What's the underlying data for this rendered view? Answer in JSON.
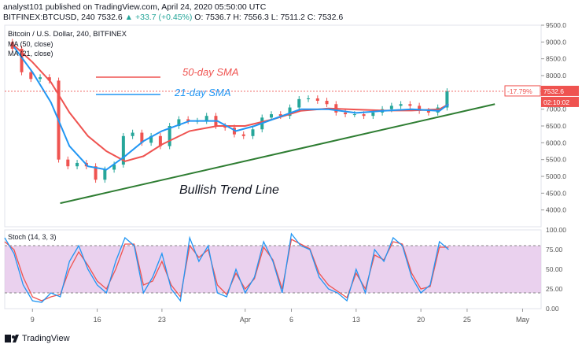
{
  "header": {
    "line1": "analyst101 published on TradingView.com, April 24, 2020 05:50:00 UTC",
    "symbol": "BITFINEX:BTCUSD, 240",
    "price": "7532.6",
    "change": "▲ +33.7 (+0.45%)",
    "ohlc": "O: 7536.7  H: 7556.3  L: 7511.2  C: 7532.6"
  },
  "chart_data": [
    {
      "type": "candlestick",
      "title": "Bitcoin / U.S. Dollar, 240, BITFINEX",
      "legend": [
        {
          "label": "MA (50, close)",
          "color": "#ef5350"
        },
        {
          "label": "MA (21, close)",
          "color": "#2196f3"
        }
      ],
      "annotations": [
        "50-day SMA",
        "21-day SMA",
        "Bullish Trend Line"
      ],
      "ylim": [
        3500,
        9500
      ],
      "yticks": [
        "9500.0",
        "9000.0",
        "8500.0",
        "8000.0",
        "7500.0",
        "7000.0",
        "6500.0",
        "6000.0",
        "5500.0",
        "5000.0",
        "4500.0",
        "4000.0"
      ],
      "xticks": [
        "9",
        "16",
        "23",
        "Apr",
        "6",
        "13",
        "20",
        "25",
        "May"
      ],
      "xtick_days": [
        9,
        16,
        23,
        32,
        37,
        44,
        51,
        56,
        62
      ],
      "x_range_days": [
        6,
        64
      ],
      "price_label": "7532.6",
      "price_pct": "-17.79%",
      "countdown": "02:10:02",
      "price_close": [
        [
          6,
          9000
        ],
        [
          7,
          8800
        ],
        [
          8,
          8100
        ],
        [
          9,
          7900
        ],
        [
          10,
          7950
        ],
        [
          11,
          7850
        ],
        [
          12,
          5500
        ],
        [
          13,
          5300
        ],
        [
          14,
          5400
        ],
        [
          15,
          5300
        ],
        [
          16,
          4900
        ],
        [
          17,
          5200
        ],
        [
          18,
          5350
        ],
        [
          19,
          6200
        ],
        [
          20,
          6300
        ],
        [
          21,
          6000
        ],
        [
          22,
          6200
        ],
        [
          23,
          5900
        ],
        [
          24,
          6500
        ],
        [
          25,
          6700
        ],
        [
          26,
          6650
        ],
        [
          27,
          6650
        ],
        [
          28,
          6800
        ],
        [
          29,
          6500
        ],
        [
          30,
          6450
        ],
        [
          31,
          6250
        ],
        [
          32,
          6200
        ],
        [
          33,
          6400
        ],
        [
          34,
          6750
        ],
        [
          35,
          6850
        ],
        [
          36,
          6800
        ],
        [
          37,
          7050
        ],
        [
          38,
          7300
        ],
        [
          39,
          7320
        ],
        [
          40,
          7250
        ],
        [
          41,
          7150
        ],
        [
          42,
          6900
        ],
        [
          43,
          6850
        ],
        [
          44,
          6850
        ],
        [
          45,
          6800
        ],
        [
          46,
          6900
        ],
        [
          47,
          7000
        ],
        [
          48,
          7100
        ],
        [
          49,
          7150
        ],
        [
          50,
          7100
        ],
        [
          51,
          6950
        ],
        [
          52,
          6900
        ],
        [
          53,
          7050
        ],
        [
          54,
          7532
        ]
      ],
      "ma50": [
        [
          7,
          8900
        ],
        [
          9,
          8400
        ],
        [
          11,
          7800
        ],
        [
          13,
          6900
        ],
        [
          15,
          6200
        ],
        [
          17,
          5750
        ],
        [
          19,
          5450
        ],
        [
          21,
          5600
        ],
        [
          23,
          5950
        ],
        [
          26,
          6350
        ],
        [
          29,
          6500
        ],
        [
          32,
          6500
        ],
        [
          35,
          6700
        ],
        [
          38,
          6950
        ],
        [
          41,
          7020
        ],
        [
          44,
          6990
        ],
        [
          47,
          6960
        ],
        [
          50,
          6960
        ],
        [
          53,
          7000
        ],
        [
          54,
          7150
        ]
      ],
      "ma21": [
        [
          7,
          8850
        ],
        [
          9,
          8100
        ],
        [
          11,
          7200
        ],
        [
          13,
          5900
        ],
        [
          15,
          5300
        ],
        [
          17,
          5200
        ],
        [
          19,
          5600
        ],
        [
          21,
          6050
        ],
        [
          23,
          6350
        ],
        [
          26,
          6650
        ],
        [
          29,
          6650
        ],
        [
          31,
          6350
        ],
        [
          33,
          6500
        ],
        [
          35,
          6700
        ],
        [
          38,
          7000
        ],
        [
          41,
          7000
        ],
        [
          44,
          6890
        ],
        [
          47,
          6950
        ],
        [
          50,
          7000
        ],
        [
          53,
          6950
        ],
        [
          54,
          7150
        ]
      ],
      "trend_line": [
        [
          12,
          4200
        ],
        [
          59,
          7150
        ]
      ]
    },
    {
      "type": "line",
      "title": "Stoch (14, 3, 3)",
      "ylim": [
        0,
        100
      ],
      "yticks": [
        "100.00",
        "75.00",
        "50.00",
        "25.00",
        "0.00"
      ],
      "bands": [
        20,
        80
      ],
      "k": [
        [
          6,
          90
        ],
        [
          7,
          70
        ],
        [
          8,
          30
        ],
        [
          9,
          10
        ],
        [
          10,
          8
        ],
        [
          11,
          20
        ],
        [
          12,
          15
        ],
        [
          13,
          60
        ],
        [
          14,
          80
        ],
        [
          15,
          50
        ],
        [
          16,
          30
        ],
        [
          17,
          20
        ],
        [
          18,
          60
        ],
        [
          19,
          90
        ],
        [
          20,
          80
        ],
        [
          21,
          20
        ],
        [
          22,
          40
        ],
        [
          23,
          70
        ],
        [
          24,
          25
        ],
        [
          25,
          10
        ],
        [
          26,
          90
        ],
        [
          27,
          60
        ],
        [
          28,
          80
        ],
        [
          29,
          20
        ],
        [
          30,
          15
        ],
        [
          31,
          50
        ],
        [
          32,
          20
        ],
        [
          33,
          40
        ],
        [
          34,
          85
        ],
        [
          35,
          60
        ],
        [
          36,
          20
        ],
        [
          37,
          95
        ],
        [
          38,
          80
        ],
        [
          39,
          75
        ],
        [
          40,
          40
        ],
        [
          41,
          25
        ],
        [
          42,
          20
        ],
        [
          43,
          10
        ],
        [
          44,
          50
        ],
        [
          45,
          20
        ],
        [
          46,
          75
        ],
        [
          47,
          60
        ],
        [
          48,
          90
        ],
        [
          49,
          80
        ],
        [
          50,
          40
        ],
        [
          51,
          20
        ],
        [
          52,
          30
        ],
        [
          53,
          85
        ],
        [
          54,
          75
        ]
      ],
      "d": [
        [
          6,
          85
        ],
        [
          7,
          75
        ],
        [
          8,
          40
        ],
        [
          9,
          15
        ],
        [
          10,
          10
        ],
        [
          11,
          15
        ],
        [
          12,
          18
        ],
        [
          13,
          50
        ],
        [
          14,
          72
        ],
        [
          15,
          55
        ],
        [
          16,
          35
        ],
        [
          17,
          25
        ],
        [
          18,
          50
        ],
        [
          19,
          82
        ],
        [
          20,
          82
        ],
        [
          21,
          30
        ],
        [
          22,
          35
        ],
        [
          23,
          60
        ],
        [
          24,
          30
        ],
        [
          25,
          15
        ],
        [
          26,
          80
        ],
        [
          27,
          65
        ],
        [
          28,
          75
        ],
        [
          29,
          30
        ],
        [
          30,
          18
        ],
        [
          31,
          45
        ],
        [
          32,
          25
        ],
        [
          33,
          38
        ],
        [
          34,
          78
        ],
        [
          35,
          62
        ],
        [
          36,
          25
        ],
        [
          37,
          88
        ],
        [
          38,
          82
        ],
        [
          39,
          76
        ],
        [
          40,
          45
        ],
        [
          41,
          30
        ],
        [
          42,
          22
        ],
        [
          43,
          14
        ],
        [
          44,
          45
        ],
        [
          45,
          25
        ],
        [
          46,
          68
        ],
        [
          47,
          62
        ],
        [
          48,
          85
        ],
        [
          49,
          82
        ],
        [
          50,
          45
        ],
        [
          51,
          25
        ],
        [
          52,
          28
        ],
        [
          53,
          78
        ],
        [
          54,
          78
        ]
      ]
    }
  ],
  "footer": {
    "brand": "TradingView"
  },
  "colors": {
    "ma50": "#ef5350",
    "ma21": "#2196f3",
    "trend": "#2e7d32",
    "up": "#26a69a",
    "down": "#ef5350",
    "stoch_k": "#2196f3",
    "stoch_d": "#ef5350",
    "stoch_band": "#e1bee7",
    "price_label": "#ef5350",
    "axis_text": "#555"
  }
}
